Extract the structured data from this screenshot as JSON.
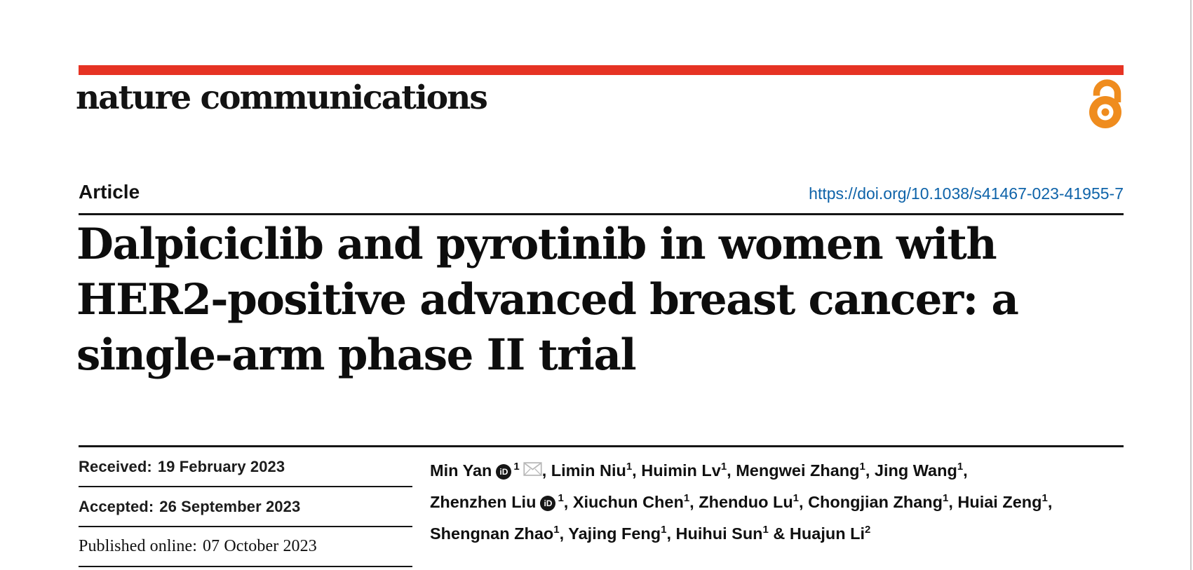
{
  "masthead": {
    "journal_logo": "nature communications",
    "bar_color": "#e63323",
    "open_access_icon": "open-access-icon",
    "open_access_color": "#ef8c1e"
  },
  "article_header": {
    "kicker": "Article",
    "doi": "https://doi.org/10.1038/s41467-023-41955-7",
    "doi_color": "#0e63a9",
    "title_lines": [
      "Dalpiciclib and pyrotinib in women with",
      "HER2-positive advanced breast cancer: a",
      "single-arm phase II trial"
    ]
  },
  "dates": {
    "items": [
      {
        "label": "Received:",
        "value": "19 February 2023"
      },
      {
        "label": "Accepted:",
        "value": "26 September 2023"
      },
      {
        "label": "Published online:",
        "value": "07 October 2023"
      }
    ]
  },
  "authors": {
    "lines": [
      [
        {
          "name": "Min Yan",
          "orcid": true,
          "sup": "1",
          "envelope": true,
          "after": ", "
        },
        {
          "name": "Limin Niu",
          "sup": "1",
          "after": ", "
        },
        {
          "name": "Huimin Lv",
          "sup": "1",
          "after": ", "
        },
        {
          "name": "Mengwei Zhang",
          "sup": "1",
          "after": ", "
        },
        {
          "name": "Jing Wang",
          "sup": "1",
          "after": ","
        }
      ],
      [
        {
          "name": "Zhenzhen Liu",
          "orcid": true,
          "sup": "1",
          "after": ", "
        },
        {
          "name": "Xiuchun Chen",
          "sup": "1",
          "after": ", "
        },
        {
          "name": "Zhenduo Lu",
          "sup": "1",
          "after": ", "
        },
        {
          "name": "Chongjian Zhang",
          "sup": "1",
          "after": ", "
        },
        {
          "name": "Huiai Zeng",
          "sup": "1",
          "after": ","
        }
      ],
      [
        {
          "name": "Shengnan Zhao",
          "sup": "1",
          "after": ", "
        },
        {
          "name": "Yajing Feng",
          "sup": "1",
          "after": ", "
        },
        {
          "name": "Huihui Sun",
          "sup": "1",
          "after": " & "
        },
        {
          "name": "Huajun Li",
          "sup": "2",
          "after": ""
        }
      ]
    ]
  }
}
